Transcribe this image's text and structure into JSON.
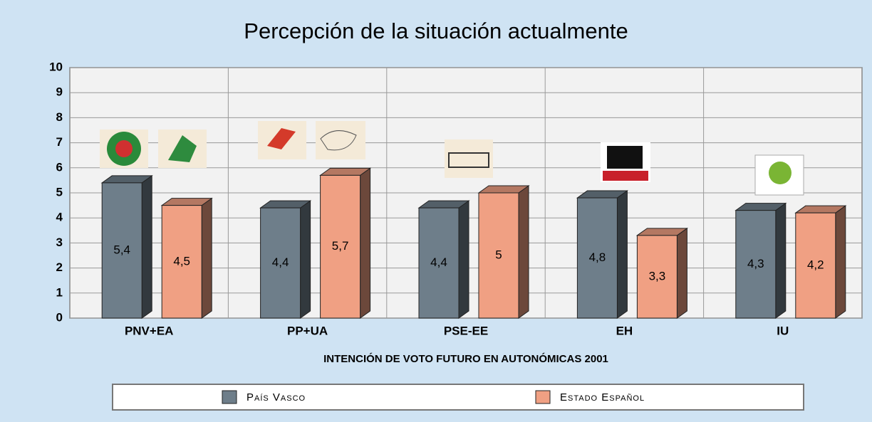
{
  "chart_data": {
    "type": "bar",
    "title": "Percepción de la situación actualmente",
    "x_label": "INTENCIÓN DE VOTO FUTURO EN AUTONÓMICAS 2001",
    "categories": [
      "PNV+EA",
      "PP+UA",
      "PSE-EE",
      "EH",
      "IU"
    ],
    "series": [
      {
        "name": "País Vasco",
        "color": "#6e7e8a",
        "values": [
          5.4,
          4.4,
          4.4,
          4.8,
          4.3
        ],
        "value_labels": [
          "5,4",
          "4,4",
          "4,4",
          "4,8",
          "4,3"
        ]
      },
      {
        "name": "Estado Español",
        "color": "#f0a083",
        "values": [
          4.5,
          5.7,
          5,
          3.3,
          4.2
        ],
        "value_labels": [
          "4,5",
          "5,7",
          "5",
          "3,3",
          "4,2"
        ]
      }
    ],
    "ylim": [
      0,
      10
    ],
    "yticks": [
      0,
      1,
      2,
      3,
      4,
      5,
      6,
      7,
      8,
      9,
      10
    ],
    "grid": true,
    "legend": "bottom"
  }
}
